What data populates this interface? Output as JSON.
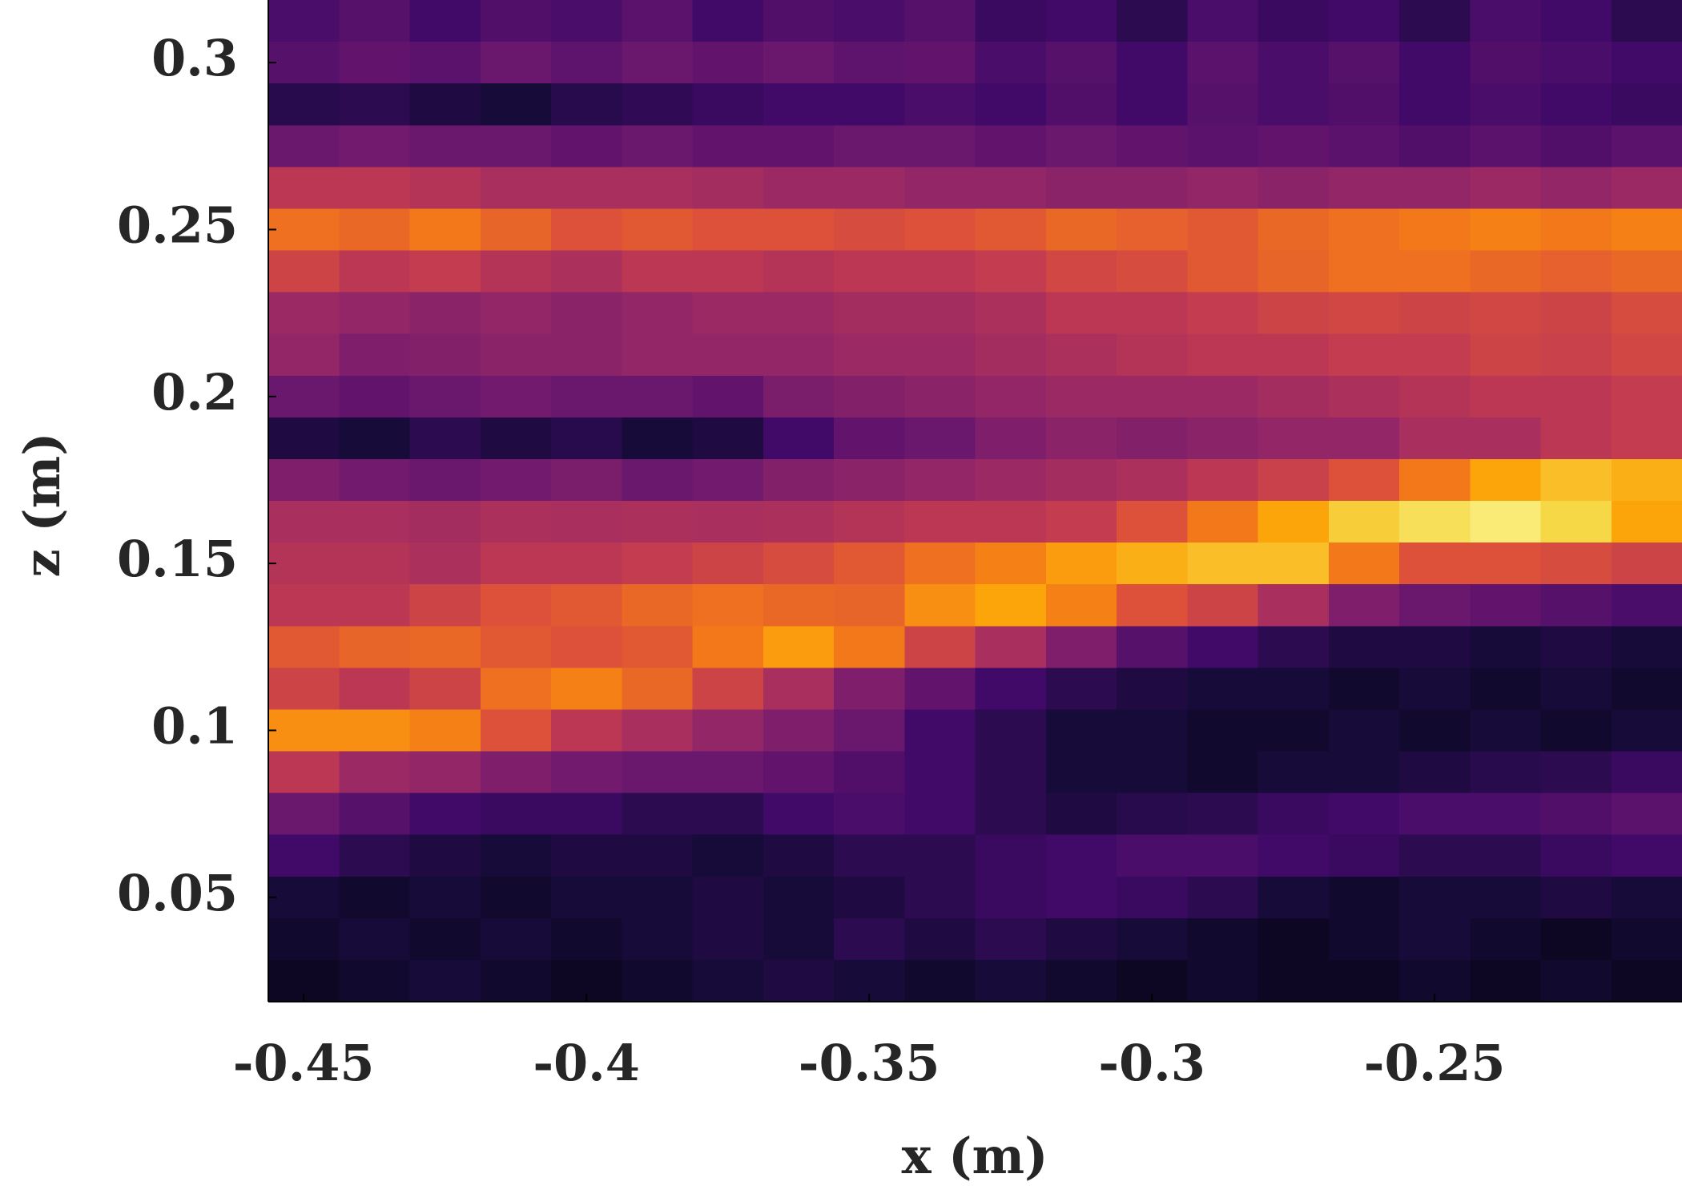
{
  "chart_data": {
    "type": "heatmap",
    "x_label": "x (m)",
    "y_label": "z (m)",
    "colormap": "inferno",
    "zlim": [
      0,
      1
    ],
    "x": [
      -0.45,
      -0.4375,
      -0.425,
      -0.4125,
      -0.4,
      -0.3875,
      -0.375,
      -0.3625,
      -0.35,
      -0.3375,
      -0.325,
      -0.3125,
      -0.3,
      -0.2875,
      -0.275,
      -0.2625,
      -0.25,
      -0.2375,
      -0.225,
      -0.2125
    ],
    "y": [
      0.3125,
      0.3,
      0.2875,
      0.275,
      0.2625,
      0.25,
      0.2375,
      0.225,
      0.2125,
      0.2,
      0.1875,
      0.175,
      0.1625,
      0.15,
      0.1375,
      0.125,
      0.1125,
      0.1,
      0.0875,
      0.075,
      0.0625,
      0.05,
      0.0375,
      0.025
    ],
    "z": [
      [
        0.22,
        0.25,
        0.2,
        0.24,
        0.22,
        0.26,
        0.2,
        0.24,
        0.22,
        0.25,
        0.18,
        0.2,
        0.15,
        0.22,
        0.18,
        0.2,
        0.15,
        0.22,
        0.2,
        0.15
      ],
      [
        0.25,
        0.28,
        0.26,
        0.3,
        0.27,
        0.3,
        0.28,
        0.3,
        0.27,
        0.28,
        0.22,
        0.25,
        0.2,
        0.26,
        0.22,
        0.25,
        0.2,
        0.24,
        0.22,
        0.2
      ],
      [
        0.14,
        0.15,
        0.12,
        0.1,
        0.14,
        0.16,
        0.18,
        0.2,
        0.2,
        0.22,
        0.2,
        0.24,
        0.2,
        0.25,
        0.22,
        0.24,
        0.2,
        0.22,
        0.2,
        0.18
      ],
      [
        0.3,
        0.32,
        0.3,
        0.3,
        0.28,
        0.3,
        0.28,
        0.28,
        0.3,
        0.3,
        0.28,
        0.3,
        0.28,
        0.26,
        0.28,
        0.26,
        0.24,
        0.26,
        0.24,
        0.26
      ],
      [
        0.5,
        0.5,
        0.48,
        0.45,
        0.45,
        0.45,
        0.44,
        0.42,
        0.42,
        0.4,
        0.4,
        0.38,
        0.38,
        0.4,
        0.38,
        0.4,
        0.4,
        0.42,
        0.4,
        0.42
      ],
      [
        0.68,
        0.66,
        0.7,
        0.65,
        0.6,
        0.62,
        0.6,
        0.6,
        0.58,
        0.6,
        0.62,
        0.66,
        0.64,
        0.62,
        0.66,
        0.68,
        0.7,
        0.72,
        0.7,
        0.72
      ],
      [
        0.55,
        0.5,
        0.52,
        0.48,
        0.46,
        0.5,
        0.5,
        0.48,
        0.5,
        0.5,
        0.52,
        0.56,
        0.58,
        0.62,
        0.65,
        0.68,
        0.68,
        0.66,
        0.64,
        0.66
      ],
      [
        0.42,
        0.4,
        0.38,
        0.4,
        0.38,
        0.4,
        0.42,
        0.42,
        0.44,
        0.44,
        0.46,
        0.5,
        0.5,
        0.52,
        0.55,
        0.56,
        0.55,
        0.56,
        0.55,
        0.58
      ],
      [
        0.4,
        0.35,
        0.36,
        0.38,
        0.38,
        0.4,
        0.4,
        0.4,
        0.42,
        0.42,
        0.44,
        0.46,
        0.48,
        0.5,
        0.5,
        0.52,
        0.52,
        0.55,
        0.54,
        0.56
      ],
      [
        0.3,
        0.28,
        0.3,
        0.32,
        0.3,
        0.3,
        0.28,
        0.34,
        0.36,
        0.38,
        0.4,
        0.42,
        0.42,
        0.42,
        0.44,
        0.46,
        0.48,
        0.5,
        0.5,
        0.52
      ],
      [
        0.12,
        0.1,
        0.15,
        0.12,
        0.14,
        0.1,
        0.12,
        0.2,
        0.28,
        0.3,
        0.35,
        0.38,
        0.36,
        0.38,
        0.4,
        0.4,
        0.45,
        0.45,
        0.5,
        0.52
      ],
      [
        0.35,
        0.32,
        0.3,
        0.32,
        0.34,
        0.3,
        0.32,
        0.36,
        0.38,
        0.4,
        0.42,
        0.44,
        0.46,
        0.5,
        0.54,
        0.6,
        0.7,
        0.8,
        0.85,
        0.82
      ],
      [
        0.45,
        0.45,
        0.44,
        0.46,
        0.45,
        0.46,
        0.45,
        0.46,
        0.48,
        0.5,
        0.5,
        0.52,
        0.6,
        0.7,
        0.8,
        0.88,
        0.92,
        0.95,
        0.9,
        0.8
      ],
      [
        0.48,
        0.48,
        0.46,
        0.5,
        0.5,
        0.52,
        0.55,
        0.58,
        0.62,
        0.68,
        0.72,
        0.78,
        0.82,
        0.85,
        0.85,
        0.7,
        0.6,
        0.6,
        0.58,
        0.55
      ],
      [
        0.5,
        0.5,
        0.55,
        0.6,
        0.62,
        0.66,
        0.68,
        0.66,
        0.65,
        0.75,
        0.8,
        0.72,
        0.6,
        0.55,
        0.45,
        0.35,
        0.3,
        0.28,
        0.25,
        0.22
      ],
      [
        0.62,
        0.65,
        0.66,
        0.62,
        0.6,
        0.62,
        0.7,
        0.78,
        0.7,
        0.55,
        0.45,
        0.35,
        0.25,
        0.2,
        0.15,
        0.12,
        0.12,
        0.1,
        0.12,
        0.1
      ],
      [
        0.55,
        0.5,
        0.55,
        0.68,
        0.72,
        0.66,
        0.55,
        0.45,
        0.35,
        0.28,
        0.2,
        0.15,
        0.12,
        0.1,
        0.1,
        0.08,
        0.1,
        0.08,
        0.1,
        0.08
      ],
      [
        0.75,
        0.75,
        0.72,
        0.6,
        0.5,
        0.45,
        0.4,
        0.35,
        0.3,
        0.2,
        0.15,
        0.1,
        0.1,
        0.08,
        0.08,
        0.1,
        0.08,
        0.1,
        0.08,
        0.1
      ],
      [
        0.5,
        0.42,
        0.4,
        0.35,
        0.32,
        0.3,
        0.3,
        0.28,
        0.24,
        0.2,
        0.15,
        0.1,
        0.1,
        0.08,
        0.1,
        0.1,
        0.12,
        0.14,
        0.15,
        0.18
      ],
      [
        0.3,
        0.25,
        0.2,
        0.18,
        0.18,
        0.15,
        0.15,
        0.2,
        0.22,
        0.2,
        0.15,
        0.12,
        0.14,
        0.15,
        0.18,
        0.2,
        0.22,
        0.22,
        0.24,
        0.26
      ],
      [
        0.2,
        0.15,
        0.12,
        0.1,
        0.12,
        0.12,
        0.1,
        0.12,
        0.15,
        0.15,
        0.18,
        0.2,
        0.22,
        0.22,
        0.2,
        0.18,
        0.15,
        0.15,
        0.18,
        0.2
      ],
      [
        0.1,
        0.08,
        0.1,
        0.08,
        0.1,
        0.1,
        0.12,
        0.1,
        0.12,
        0.15,
        0.18,
        0.2,
        0.18,
        0.15,
        0.1,
        0.08,
        0.1,
        0.1,
        0.12,
        0.1
      ],
      [
        0.08,
        0.1,
        0.08,
        0.1,
        0.08,
        0.1,
        0.12,
        0.1,
        0.15,
        0.12,
        0.15,
        0.12,
        0.1,
        0.08,
        0.06,
        0.08,
        0.1,
        0.08,
        0.06,
        0.08
      ],
      [
        0.06,
        0.08,
        0.1,
        0.08,
        0.06,
        0.08,
        0.1,
        0.12,
        0.1,
        0.08,
        0.1,
        0.08,
        0.06,
        0.08,
        0.06,
        0.06,
        0.08,
        0.06,
        0.08,
        0.06
      ]
    ],
    "xlim": [
      -0.45625,
      -0.20625
    ],
    "ylim": [
      0.01875,
      0.31875
    ],
    "xticks": [
      -0.45,
      -0.4,
      -0.35,
      -0.3,
      -0.25
    ],
    "yticks": [
      0.05,
      0.1,
      0.15,
      0.2,
      0.25,
      0.3
    ]
  }
}
